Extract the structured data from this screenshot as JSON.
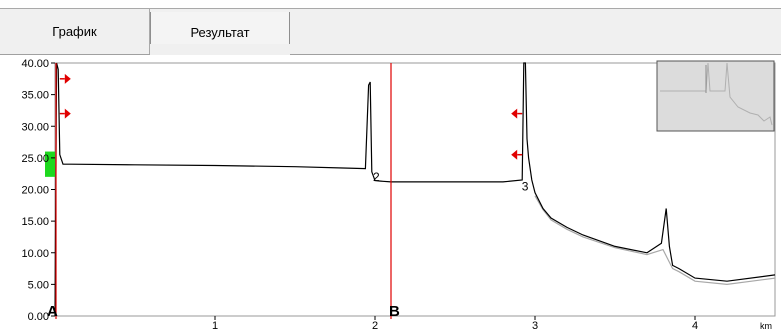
{
  "tabs": [
    {
      "label": "График",
      "selected": true
    },
    {
      "label": "Результат",
      "selected": false
    }
  ],
  "chart_data": {
    "type": "line",
    "x_unit": "km",
    "xlim": [
      0,
      4.5
    ],
    "ylim": [
      0,
      40
    ],
    "x_ticks": [
      1,
      2,
      3,
      4
    ],
    "y_ticks": [
      "0.00",
      "5.00",
      "10.00",
      "15.00",
      "20.00",
      "25.00",
      "30.00",
      "35.00",
      "40.00"
    ],
    "grid": false,
    "series": [
      {
        "color": "#000000",
        "x": [
          0.0,
          0.01,
          0.02,
          0.03,
          0.05,
          0.1,
          0.5,
          1.0,
          1.5,
          1.8,
          1.94,
          1.96,
          1.97,
          1.98,
          2.0,
          2.05,
          2.1,
          2.4,
          2.8,
          2.92,
          2.93,
          2.94,
          2.95,
          2.96,
          2.98,
          3.0,
          3.05,
          3.1,
          3.2,
          3.3,
          3.5,
          3.7,
          3.79,
          3.82,
          3.84,
          3.86,
          3.9,
          4.0,
          4.2,
          4.5
        ],
        "y": [
          0.0,
          40.0,
          39.0,
          25.5,
          24.0,
          24.0,
          23.9,
          23.8,
          23.6,
          23.4,
          23.3,
          36.5,
          37.0,
          22.8,
          21.4,
          21.3,
          21.2,
          21.2,
          21.2,
          21.5,
          40.0,
          40.0,
          28.0,
          25.0,
          21.5,
          19.5,
          17.0,
          15.5,
          14.0,
          12.8,
          11.0,
          10.0,
          11.5,
          17.0,
          11.0,
          8.0,
          7.5,
          6.0,
          5.5,
          6.5
        ]
      },
      {
        "color": "#a8a8a8",
        "x": [
          3.0,
          3.05,
          3.1,
          3.2,
          3.3,
          3.5,
          3.7,
          3.8,
          3.86,
          3.9,
          4.0,
          4.2,
          4.5
        ],
        "y": [
          19.0,
          16.8,
          15.2,
          13.7,
          12.5,
          10.8,
          9.7,
          10.5,
          7.5,
          7.0,
          5.5,
          5.0,
          6.0
        ]
      }
    ],
    "cursors": [
      {
        "label": "A",
        "x": 0.0
      },
      {
        "label": "B",
        "x": 2.1
      }
    ],
    "events": [
      {
        "label": "2",
        "x": 2.0,
        "y": 22.0
      },
      {
        "label": "3",
        "x": 2.93,
        "y": 20.5
      }
    ],
    "arrow_markers": [
      {
        "x": 0.03,
        "y": 37.5,
        "direction": "right"
      },
      {
        "x": 0.03,
        "y": 32.0,
        "direction": "right"
      },
      {
        "x": 2.92,
        "y": 32.0,
        "direction": "left"
      },
      {
        "x": 2.92,
        "y": 25.5,
        "direction": "left"
      }
    ],
    "level_indicator": {
      "color": "#1ed81e",
      "y_from": 22.0,
      "y_to": 26.0
    }
  }
}
